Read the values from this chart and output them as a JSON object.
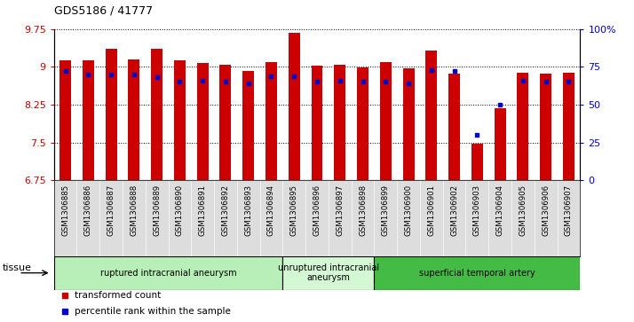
{
  "title": "GDS5186 / 41777",
  "samples": [
    "GSM1306885",
    "GSM1306886",
    "GSM1306887",
    "GSM1306888",
    "GSM1306889",
    "GSM1306890",
    "GSM1306891",
    "GSM1306892",
    "GSM1306893",
    "GSM1306894",
    "GSM1306895",
    "GSM1306896",
    "GSM1306897",
    "GSM1306898",
    "GSM1306899",
    "GSM1306900",
    "GSM1306901",
    "GSM1306902",
    "GSM1306903",
    "GSM1306904",
    "GSM1306905",
    "GSM1306906",
    "GSM1306907"
  ],
  "bar_values": [
    9.13,
    9.13,
    9.35,
    9.14,
    9.35,
    9.12,
    9.07,
    9.04,
    8.92,
    9.1,
    9.68,
    9.03,
    9.04,
    8.99,
    9.09,
    8.97,
    9.33,
    8.87,
    7.47,
    8.18,
    8.88,
    8.87,
    8.88
  ],
  "percentile_values": [
    72,
    70,
    70,
    70,
    68,
    65,
    66,
    65,
    64,
    69,
    69,
    65,
    66,
    65,
    65,
    64,
    73,
    72,
    30,
    50,
    66,
    65,
    65
  ],
  "ylim_left": [
    6.75,
    9.75
  ],
  "ylim_right": [
    0,
    100
  ],
  "yticks_left": [
    6.75,
    7.5,
    8.25,
    9.0,
    9.75
  ],
  "ytick_labels_left": [
    "6.75",
    "7.5",
    "8.25",
    "9",
    "9.75"
  ],
  "yticks_right": [
    0,
    25,
    50,
    75,
    100
  ],
  "ytick_labels_right": [
    "0",
    "25",
    "50",
    "75",
    "100%"
  ],
  "bar_color": "#CC0000",
  "dot_color": "#0000CC",
  "bar_width": 0.5,
  "groups": [
    {
      "label": "ruptured intracranial aneurysm",
      "start": 0,
      "end": 10,
      "color": "#b8eeb8"
    },
    {
      "label": "unruptured intracranial\naneurysm",
      "start": 10,
      "end": 14,
      "color": "#d0f8d0"
    },
    {
      "label": "superficial temporal artery",
      "start": 14,
      "end": 23,
      "color": "#44cc44"
    }
  ],
  "legend_items": [
    {
      "label": "transformed count",
      "color": "#CC0000"
    },
    {
      "label": "percentile rank within the sample",
      "color": "#0000CC"
    }
  ],
  "tissue_label": "tissue",
  "background_color": "#FFFFFF",
  "xticklabel_bg": "#DDDDDD"
}
